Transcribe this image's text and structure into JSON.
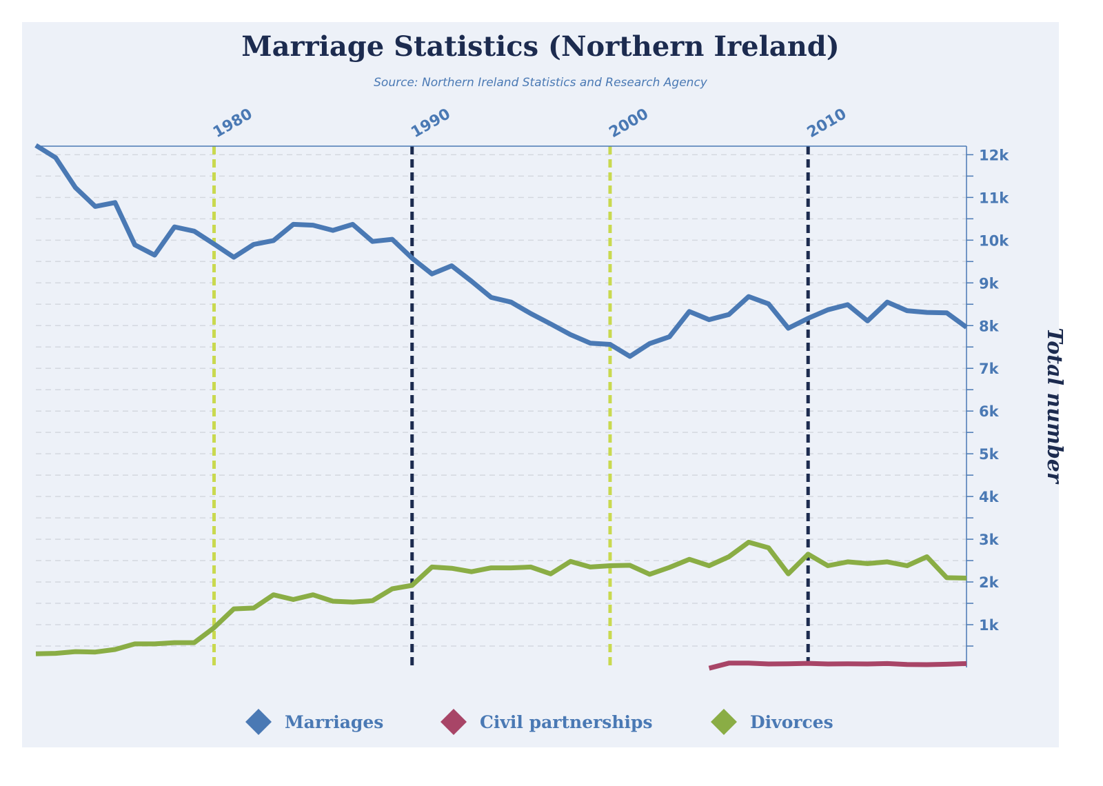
{
  "chart_data": {
    "type": "line",
    "title": "Marriage Statistics (Northern Ireland)",
    "subtitle": "Source: Northern Ireland Statistics and Research Agency",
    "ylabel": "Total number",
    "ylim": [
      0,
      12200
    ],
    "xlim": [
      1971,
      2018
    ],
    "y_ticks": [
      {
        "value": 1000,
        "label": "1k"
      },
      {
        "value": 2000,
        "label": "2k"
      },
      {
        "value": 3000,
        "label": "3k"
      },
      {
        "value": 4000,
        "label": "4k"
      },
      {
        "value": 5000,
        "label": "5k"
      },
      {
        "value": 6000,
        "label": "6k"
      },
      {
        "value": 7000,
        "label": "7k"
      },
      {
        "value": 8000,
        "label": "8k"
      },
      {
        "value": 9000,
        "label": "9k"
      },
      {
        "value": 10000,
        "label": "10k"
      },
      {
        "value": 11000,
        "label": "11k"
      },
      {
        "value": 12000,
        "label": "12k"
      }
    ],
    "x_ticks": [
      {
        "value": 1980,
        "label": "1980",
        "color": "#c9d94f"
      },
      {
        "value": 1990,
        "label": "1990",
        "color": "#1c2b4f"
      },
      {
        "value": 2000,
        "label": "2000",
        "color": "#c9d94f"
      },
      {
        "value": 2010,
        "label": "2010",
        "color": "#1c2b4f"
      }
    ],
    "grid": true,
    "legend_position": "bottom",
    "series": [
      {
        "name": "Marriages",
        "color": "#4a79b4",
        "x": [
          1971,
          1972,
          1973,
          1974,
          1975,
          1976,
          1977,
          1978,
          1979,
          1980,
          1981,
          1982,
          1983,
          1984,
          1985,
          1986,
          1987,
          1988,
          1989,
          1990,
          1991,
          1992,
          1993,
          1994,
          1995,
          1996,
          1997,
          1998,
          1999,
          2000,
          2001,
          2002,
          2003,
          2004,
          2005,
          2006,
          2007,
          2008,
          2009,
          2010,
          2011,
          2012,
          2013,
          2014,
          2015,
          2016,
          2017,
          2018
        ],
        "values": [
          12220,
          11930,
          11230,
          10790,
          10880,
          9890,
          9650,
          10310,
          10210,
          9910,
          9600,
          9900,
          9990,
          10370,
          10350,
          10230,
          10370,
          9970,
          10020,
          9580,
          9210,
          9400,
          9040,
          8660,
          8550,
          8280,
          8040,
          7790,
          7590,
          7560,
          7280,
          7580,
          7740,
          8330,
          8140,
          8260,
          8680,
          8510,
          7940,
          8170,
          8370,
          8490,
          8110,
          8550,
          8350,
          8310,
          8300,
          7960
        ]
      },
      {
        "name": "Civil partnerships",
        "color": "#a84567",
        "x": [
          2005,
          2006,
          2007,
          2008,
          2009,
          2010,
          2011,
          2012,
          2013,
          2014,
          2015,
          2016,
          2017,
          2018
        ],
        "values": [
          -20,
          100,
          100,
          80,
          85,
          95,
          80,
          85,
          80,
          90,
          70,
          65,
          75,
          90
        ]
      },
      {
        "name": "Divorces",
        "color": "#8aad45",
        "x": [
          1971,
          1972,
          1973,
          1974,
          1975,
          1976,
          1977,
          1978,
          1979,
          1980,
          1981,
          1982,
          1983,
          1984,
          1985,
          1986,
          1987,
          1988,
          1989,
          1990,
          1991,
          1992,
          1993,
          1994,
          1995,
          1996,
          1997,
          1998,
          1999,
          2000,
          2001,
          2002,
          2003,
          2004,
          2005,
          2006,
          2007,
          2008,
          2009,
          2010,
          2011,
          2012,
          2013,
          2014,
          2015,
          2016,
          2017,
          2018
        ],
        "values": [
          320,
          330,
          370,
          360,
          420,
          550,
          550,
          580,
          580,
          930,
          1370,
          1390,
          1700,
          1590,
          1700,
          1550,
          1530,
          1560,
          1840,
          1920,
          2350,
          2320,
          2240,
          2330,
          2330,
          2350,
          2190,
          2480,
          2350,
          2380,
          2390,
          2180,
          2340,
          2530,
          2380,
          2590,
          2930,
          2800,
          2190,
          2650,
          2380,
          2470,
          2430,
          2470,
          2380,
          2590,
          2100,
          2090
        ]
      }
    ]
  }
}
